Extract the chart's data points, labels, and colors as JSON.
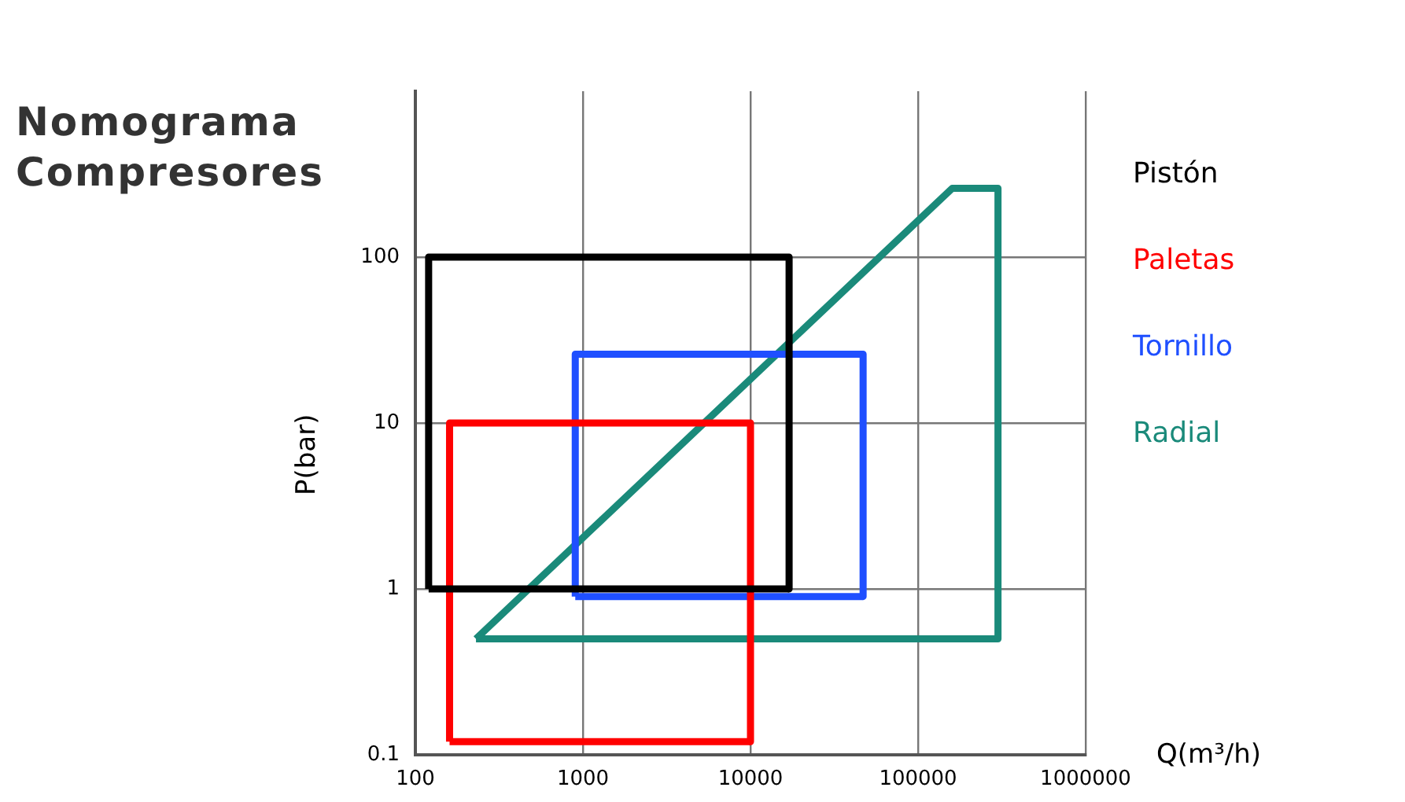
{
  "chart_data": {
    "type": "line",
    "title": "Nomograma Compresores",
    "xlabel": "Q(m³/h)",
    "ylabel": "P(bar)",
    "log": "xy",
    "grid": true,
    "marker": "none",
    "line_style": "solid",
    "xlim": [
      100,
      1000000
    ],
    "xticks": [
      100,
      1000,
      10000,
      100000,
      1000000
    ],
    "ylim": [
      0.1,
      1000
    ],
    "yticks": [
      0.1,
      1,
      10,
      100
    ],
    "series": [
      {
        "name": "Pistón",
        "color": "#000000",
        "x": [
          120,
          120,
          17000,
          17000
        ],
        "values": [
          1,
          100,
          100,
          1
        ]
      },
      {
        "color": "#000000",
        "x": [
          120,
          17000
        ],
        "values": [
          1,
          1
        ]
      },
      {
        "name": "Paletas",
        "color": "#ff0000",
        "x": [
          160,
          160,
          10000,
          10000
        ],
        "values": [
          0.12,
          10,
          10,
          0.12
        ]
      },
      {
        "color": "#ff0000",
        "x": [
          160,
          10000
        ],
        "values": [
          0.12,
          0.12
        ]
      },
      {
        "name": "Tornillo",
        "color": "#1f4fff",
        "x": [
          900,
          900,
          47000,
          47000
        ],
        "values": [
          0.9,
          26,
          26,
          0.9
        ]
      },
      {
        "color": "#1f4fff",
        "x": [
          900,
          47000
        ],
        "values": [
          0.9,
          0.9
        ]
      },
      {
        "name": "Radial",
        "color": "#1a8a7a",
        "x": [
          230,
          160000,
          300000,
          300000
        ],
        "values": [
          0.5,
          260,
          260,
          0.5
        ]
      },
      {
        "color": "#1a8a7a",
        "x": [
          230,
          300000
        ],
        "values": [
          0.5,
          0.5
        ]
      }
    ]
  }
}
